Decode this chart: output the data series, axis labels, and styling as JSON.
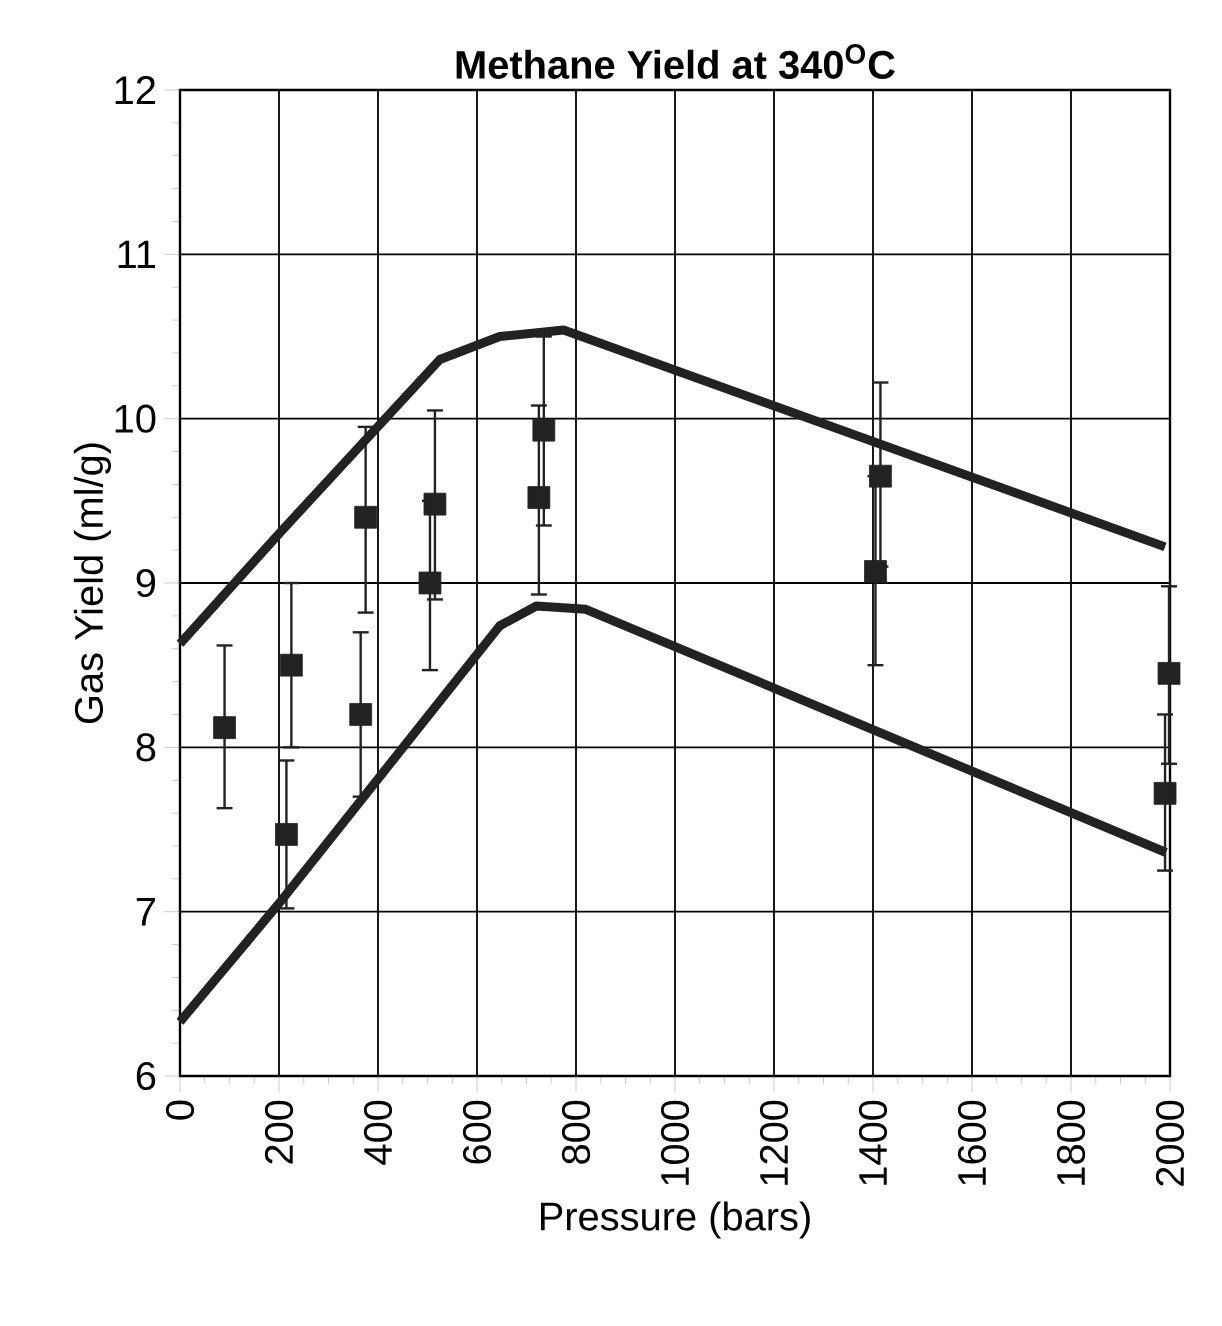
{
  "chart_data": {
    "type": "line",
    "title": "Methane Yield at 340$^{O}$C",
    "xlabel": "Pressure (bars)",
    "ylabel": "Gas Yield (ml/g)",
    "xlim": [
      0,
      2000
    ],
    "ylim": [
      6,
      12
    ],
    "xticks": [
      0,
      200,
      400,
      600,
      800,
      1000,
      1200,
      1400,
      1600,
      1800,
      2000
    ],
    "yticks": [
      6,
      7,
      8,
      9,
      10,
      11,
      12
    ],
    "grid": true,
    "line_style": "solid",
    "marker": "none",
    "series": [
      {
        "color": "#222222",
        "x": [
          0,
          200,
          525,
          646,
          775,
          1990
        ],
        "values": [
          8.63,
          9.3,
          10.36,
          10.5,
          10.54,
          9.22
        ]
      },
      {
        "color": "#222222",
        "x": [
          0,
          200,
          646,
          720,
          820,
          1992
        ],
        "values": [
          6.33,
          7.05,
          8.74,
          8.86,
          8.84,
          7.36
        ]
      },
      {
        "type": "scatter",
        "color": "#222222",
        "marker": "square",
        "x": [
          90,
          225,
          215,
          375,
          365,
          515,
          505,
          735,
          725,
          1415,
          1405,
          1998,
          1990
        ],
        "values": [
          8.12,
          8.5,
          7.47,
          9.4,
          8.2,
          9.48,
          9.0,
          9.93,
          9.52,
          9.65,
          9.07,
          8.45,
          7.72
        ],
        "errors": [
          [
            7.63,
            8.62
          ],
          [
            8.0,
            9.0
          ],
          [
            7.02,
            7.92
          ],
          [
            8.82,
            9.95
          ],
          [
            7.7,
            8.7
          ],
          [
            8.9,
            10.05
          ],
          [
            8.47,
            9.5
          ],
          [
            9.35,
            10.5
          ],
          [
            8.93,
            10.08
          ],
          [
            9.1,
            10.22
          ],
          [
            8.5,
            9.65
          ],
          [
            7.9,
            8.98
          ],
          [
            7.25,
            8.2
          ]
        ]
      }
    ]
  }
}
